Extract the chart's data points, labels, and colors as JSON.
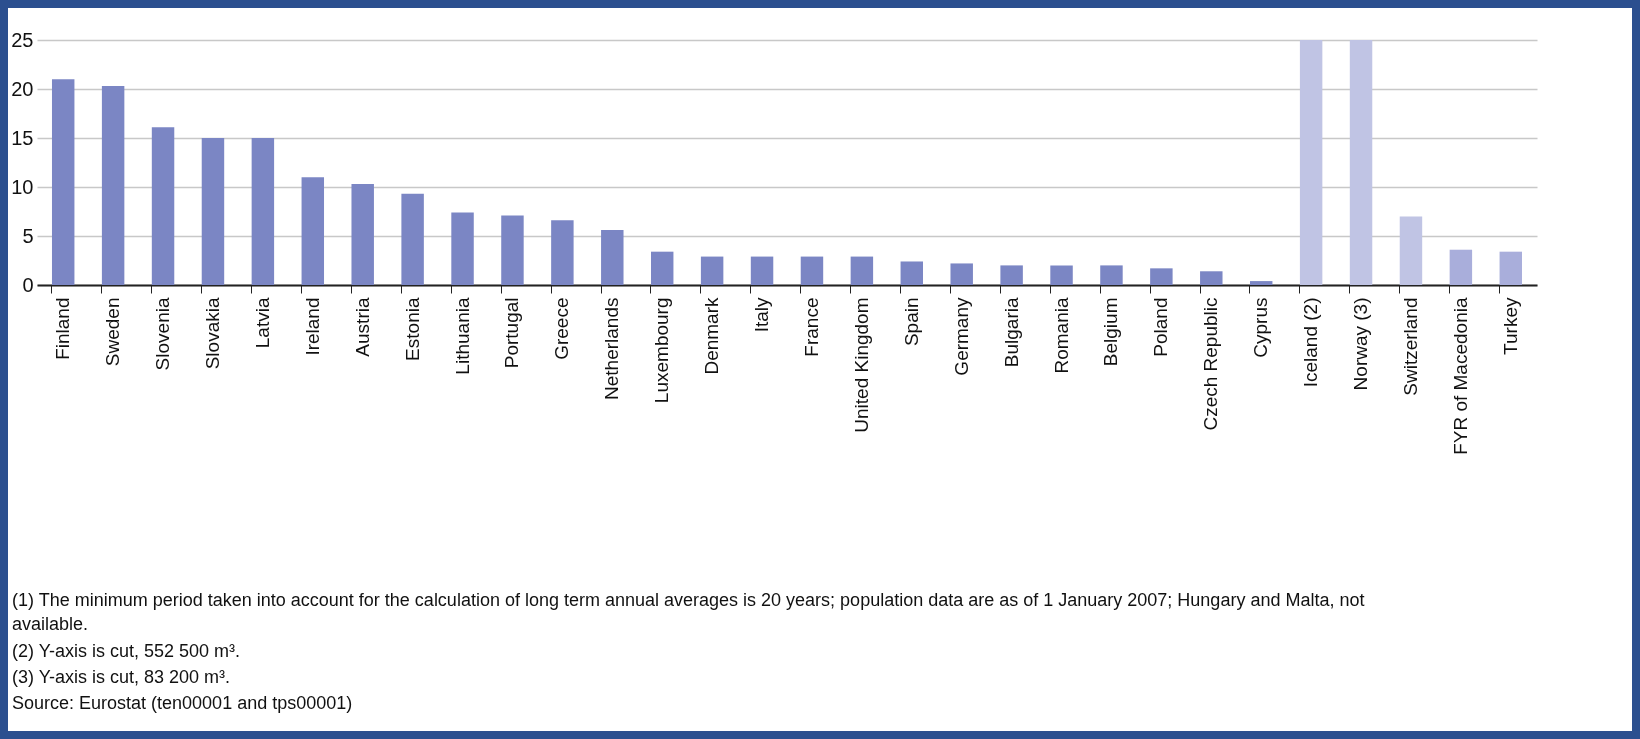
{
  "chart_data": {
    "type": "bar",
    "categories": [
      "Finland",
      "Sweden",
      "Slovenia",
      "Slovakia",
      "Latvia",
      "Ireland",
      "Austria",
      "Estonia",
      "Lithuania",
      "Portugal",
      "Greece",
      "Netherlands",
      "Luxembourg",
      "Denmark",
      "Italy",
      "France",
      "United Kingdom",
      "Spain",
      "Germany",
      "Bulgaria",
      "Romania",
      "Belgium",
      "Poland",
      "Czech Republic",
      "Cyprus",
      "Iceland (2)",
      "Norway (3)",
      "Switzerland",
      "FYR of Macedonia",
      "Turkey"
    ],
    "values": [
      21,
      20.3,
      16.1,
      15,
      15,
      11,
      10.3,
      9.3,
      7.4,
      7.1,
      6.6,
      5.6,
      3.4,
      2.9,
      2.9,
      2.9,
      2.9,
      2.4,
      2.2,
      2.0,
      2.0,
      2.0,
      1.7,
      1.4,
      0.4,
      25,
      25,
      7.0,
      3.6,
      3.4
    ],
    "colors": [
      "#7b86c4",
      "#7b86c4",
      "#7b86c4",
      "#7b86c4",
      "#7b86c4",
      "#7b86c4",
      "#7b86c4",
      "#7b86c4",
      "#7b86c4",
      "#7b86c4",
      "#7b86c4",
      "#7b86c4",
      "#7b86c4",
      "#7b86c4",
      "#7b86c4",
      "#7b86c4",
      "#7b86c4",
      "#7b86c4",
      "#7b86c4",
      "#7b86c4",
      "#7b86c4",
      "#7b86c4",
      "#7b86c4",
      "#7b86c4",
      "#7b86c4",
      "#c0c4e4",
      "#c0c4e4",
      "#c0c4e4",
      "#a9aedb",
      "#a9aedb"
    ],
    "ylim": [
      0,
      25
    ],
    "yticks": [
      0,
      5,
      10,
      15,
      20,
      25
    ],
    "grid": "y",
    "annotations": [
      "(1) The minimum period taken into account for the calculation of long term annual averages is 20 years; population data are as of 1 January 2007; Hungary and Malta, not available.",
      "(2) Y-axis is cut, 552 500 m³.",
      "(3) Y-axis is cut, 83 200 m³.",
      "Source: Eurostat (ten00001 and tps00001)"
    ]
  }
}
